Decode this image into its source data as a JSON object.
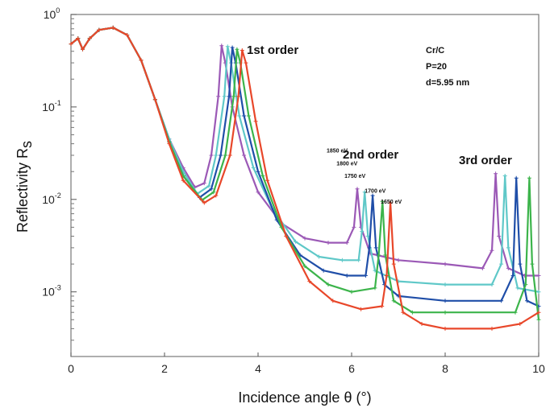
{
  "chart_data": {
    "type": "line",
    "xlabel": "Incidence angle θ (°)",
    "ylabel": "Reflectivity R",
    "ylabel_sub": "s",
    "xlim": [
      0,
      10
    ],
    "ylim": [
      0.0002,
      1
    ],
    "yscale": "log",
    "xticks": [
      "0",
      "2",
      "4",
      "6",
      "8",
      "10"
    ],
    "yticks": [
      {
        "base": "10",
        "exp": "0"
      },
      {
        "base": "10",
        "exp": "-1"
      },
      {
        "base": "10",
        "exp": "-2"
      },
      {
        "base": "10",
        "exp": "-3"
      }
    ],
    "annotations": {
      "first_order": "1st order",
      "second_order": "2nd order",
      "third_order": "3rd order",
      "info_line1": "Cr/C",
      "info_line2": "P=20",
      "info_line3": "d=5.95 nm"
    },
    "series": [
      {
        "name": "1850 eV",
        "color": "#9b59b6",
        "points": [
          [
            0,
            0.48
          ],
          [
            0.15,
            0.55
          ],
          [
            0.25,
            0.42
          ],
          [
            0.4,
            0.55
          ],
          [
            0.6,
            0.68
          ],
          [
            0.9,
            0.72
          ],
          [
            1.2,
            0.6
          ],
          [
            1.5,
            0.32
          ],
          [
            1.8,
            0.12
          ],
          [
            2.1,
            0.045
          ],
          [
            2.4,
            0.022
          ],
          [
            2.65,
            0.0135
          ],
          [
            2.85,
            0.015
          ],
          [
            3.0,
            0.03
          ],
          [
            3.15,
            0.13
          ],
          [
            3.22,
            0.46
          ],
          [
            3.3,
            0.3
          ],
          [
            3.45,
            0.1
          ],
          [
            3.7,
            0.03
          ],
          [
            4.0,
            0.012
          ],
          [
            4.5,
            0.0055
          ],
          [
            5.0,
            0.0038
          ],
          [
            5.5,
            0.0034
          ],
          [
            5.9,
            0.0034
          ],
          [
            6.05,
            0.005
          ],
          [
            6.12,
            0.013
          ],
          [
            6.2,
            0.005
          ],
          [
            6.4,
            0.0026
          ],
          [
            7,
            0.0022
          ],
          [
            8,
            0.002
          ],
          [
            8.8,
            0.0018
          ],
          [
            9.0,
            0.0028
          ],
          [
            9.08,
            0.019
          ],
          [
            9.15,
            0.004
          ],
          [
            9.35,
            0.0018
          ],
          [
            9.7,
            0.0015
          ],
          [
            10,
            0.0015
          ]
        ]
      },
      {
        "name": "1800 eV",
        "color": "#5fc8c8",
        "points": [
          [
            0,
            0.48
          ],
          [
            0.15,
            0.55
          ],
          [
            0.25,
            0.42
          ],
          [
            0.4,
            0.55
          ],
          [
            0.6,
            0.68
          ],
          [
            0.9,
            0.72
          ],
          [
            1.2,
            0.6
          ],
          [
            1.5,
            0.32
          ],
          [
            1.8,
            0.12
          ],
          [
            2.1,
            0.045
          ],
          [
            2.4,
            0.02
          ],
          [
            2.7,
            0.0115
          ],
          [
            2.95,
            0.014
          ],
          [
            3.1,
            0.03
          ],
          [
            3.28,
            0.13
          ],
          [
            3.35,
            0.45
          ],
          [
            3.42,
            0.3
          ],
          [
            3.6,
            0.08
          ],
          [
            3.9,
            0.022
          ],
          [
            4.3,
            0.008
          ],
          [
            4.8,
            0.0035
          ],
          [
            5.3,
            0.0024
          ],
          [
            5.8,
            0.0022
          ],
          [
            6.15,
            0.0022
          ],
          [
            6.22,
            0.0045
          ],
          [
            6.28,
            0.012
          ],
          [
            6.35,
            0.004
          ],
          [
            6.5,
            0.0017
          ],
          [
            7,
            0.0013
          ],
          [
            8,
            0.0012
          ],
          [
            9.0,
            0.0012
          ],
          [
            9.2,
            0.002
          ],
          [
            9.28,
            0.018
          ],
          [
            9.35,
            0.003
          ],
          [
            9.55,
            0.0011
          ],
          [
            10,
            0.001
          ]
        ]
      },
      {
        "name": "1750 eV",
        "color": "#1f4ea8",
        "points": [
          [
            0,
            0.48
          ],
          [
            0.15,
            0.55
          ],
          [
            0.25,
            0.42
          ],
          [
            0.4,
            0.55
          ],
          [
            0.6,
            0.68
          ],
          [
            0.9,
            0.72
          ],
          [
            1.2,
            0.6
          ],
          [
            1.5,
            0.32
          ],
          [
            1.8,
            0.12
          ],
          [
            2.1,
            0.042
          ],
          [
            2.4,
            0.018
          ],
          [
            2.75,
            0.0105
          ],
          [
            3.0,
            0.013
          ],
          [
            3.2,
            0.03
          ],
          [
            3.38,
            0.13
          ],
          [
            3.45,
            0.44
          ],
          [
            3.52,
            0.3
          ],
          [
            3.7,
            0.08
          ],
          [
            4.0,
            0.02
          ],
          [
            4.4,
            0.006
          ],
          [
            4.9,
            0.0025
          ],
          [
            5.4,
            0.0017
          ],
          [
            5.9,
            0.0015
          ],
          [
            6.3,
            0.0015
          ],
          [
            6.38,
            0.003
          ],
          [
            6.45,
            0.011
          ],
          [
            6.52,
            0.003
          ],
          [
            6.7,
            0.0012
          ],
          [
            7,
            0.0009
          ],
          [
            8,
            0.0008
          ],
          [
            9.2,
            0.0008
          ],
          [
            9.45,
            0.0015
          ],
          [
            9.52,
            0.017
          ],
          [
            9.6,
            0.002
          ],
          [
            9.75,
            0.0008
          ],
          [
            10,
            0.0007
          ]
        ]
      },
      {
        "name": "1700 eV",
        "color": "#3cb44b",
        "points": [
          [
            0,
            0.48
          ],
          [
            0.15,
            0.55
          ],
          [
            0.25,
            0.42
          ],
          [
            0.4,
            0.55
          ],
          [
            0.6,
            0.68
          ],
          [
            0.9,
            0.72
          ],
          [
            1.2,
            0.6
          ],
          [
            1.5,
            0.32
          ],
          [
            1.8,
            0.12
          ],
          [
            2.1,
            0.042
          ],
          [
            2.4,
            0.018
          ],
          [
            2.8,
            0.0098
          ],
          [
            3.05,
            0.012
          ],
          [
            3.3,
            0.03
          ],
          [
            3.48,
            0.13
          ],
          [
            3.55,
            0.42
          ],
          [
            3.62,
            0.3
          ],
          [
            3.8,
            0.08
          ],
          [
            4.1,
            0.018
          ],
          [
            4.5,
            0.005
          ],
          [
            5.0,
            0.0019
          ],
          [
            5.5,
            0.0012
          ],
          [
            6.0,
            0.001
          ],
          [
            6.5,
            0.0011
          ],
          [
            6.58,
            0.0025
          ],
          [
            6.66,
            0.0095
          ],
          [
            6.72,
            0.0025
          ],
          [
            6.9,
            0.0008
          ],
          [
            7.3,
            0.0006
          ],
          [
            8,
            0.0006
          ],
          [
            9.5,
            0.0006
          ],
          [
            9.72,
            0.0012
          ],
          [
            9.8,
            0.017
          ],
          [
            9.86,
            0.002
          ],
          [
            10,
            0.0005
          ]
        ]
      },
      {
        "name": "1650 eV",
        "color": "#e8472a",
        "points": [
          [
            0,
            0.48
          ],
          [
            0.15,
            0.55
          ],
          [
            0.25,
            0.42
          ],
          [
            0.4,
            0.55
          ],
          [
            0.6,
            0.68
          ],
          [
            0.9,
            0.72
          ],
          [
            1.2,
            0.6
          ],
          [
            1.5,
            0.32
          ],
          [
            1.8,
            0.12
          ],
          [
            2.1,
            0.04
          ],
          [
            2.4,
            0.016
          ],
          [
            2.85,
            0.0092
          ],
          [
            3.1,
            0.011
          ],
          [
            3.4,
            0.03
          ],
          [
            3.58,
            0.13
          ],
          [
            3.66,
            0.41
          ],
          [
            3.74,
            0.3
          ],
          [
            3.95,
            0.07
          ],
          [
            4.2,
            0.016
          ],
          [
            4.6,
            0.004
          ],
          [
            5.1,
            0.0013
          ],
          [
            5.6,
            0.0008
          ],
          [
            6.2,
            0.00065
          ],
          [
            6.65,
            0.0007
          ],
          [
            6.75,
            0.0015
          ],
          [
            6.83,
            0.0092
          ],
          [
            6.9,
            0.002
          ],
          [
            7.1,
            0.0006
          ],
          [
            7.5,
            0.00045
          ],
          [
            8,
            0.0004
          ],
          [
            9,
            0.0004
          ],
          [
            9.6,
            0.00045
          ],
          [
            10,
            0.0006
          ]
        ]
      }
    ],
    "peak_labels": [
      {
        "text": "1850 eV",
        "series": 0
      },
      {
        "text": "1800 eV",
        "series": 1
      },
      {
        "text": "1750 eV",
        "series": 2
      },
      {
        "text": "1700 eV",
        "series": 3
      },
      {
        "text": "1650 eV",
        "series": 4
      }
    ]
  }
}
